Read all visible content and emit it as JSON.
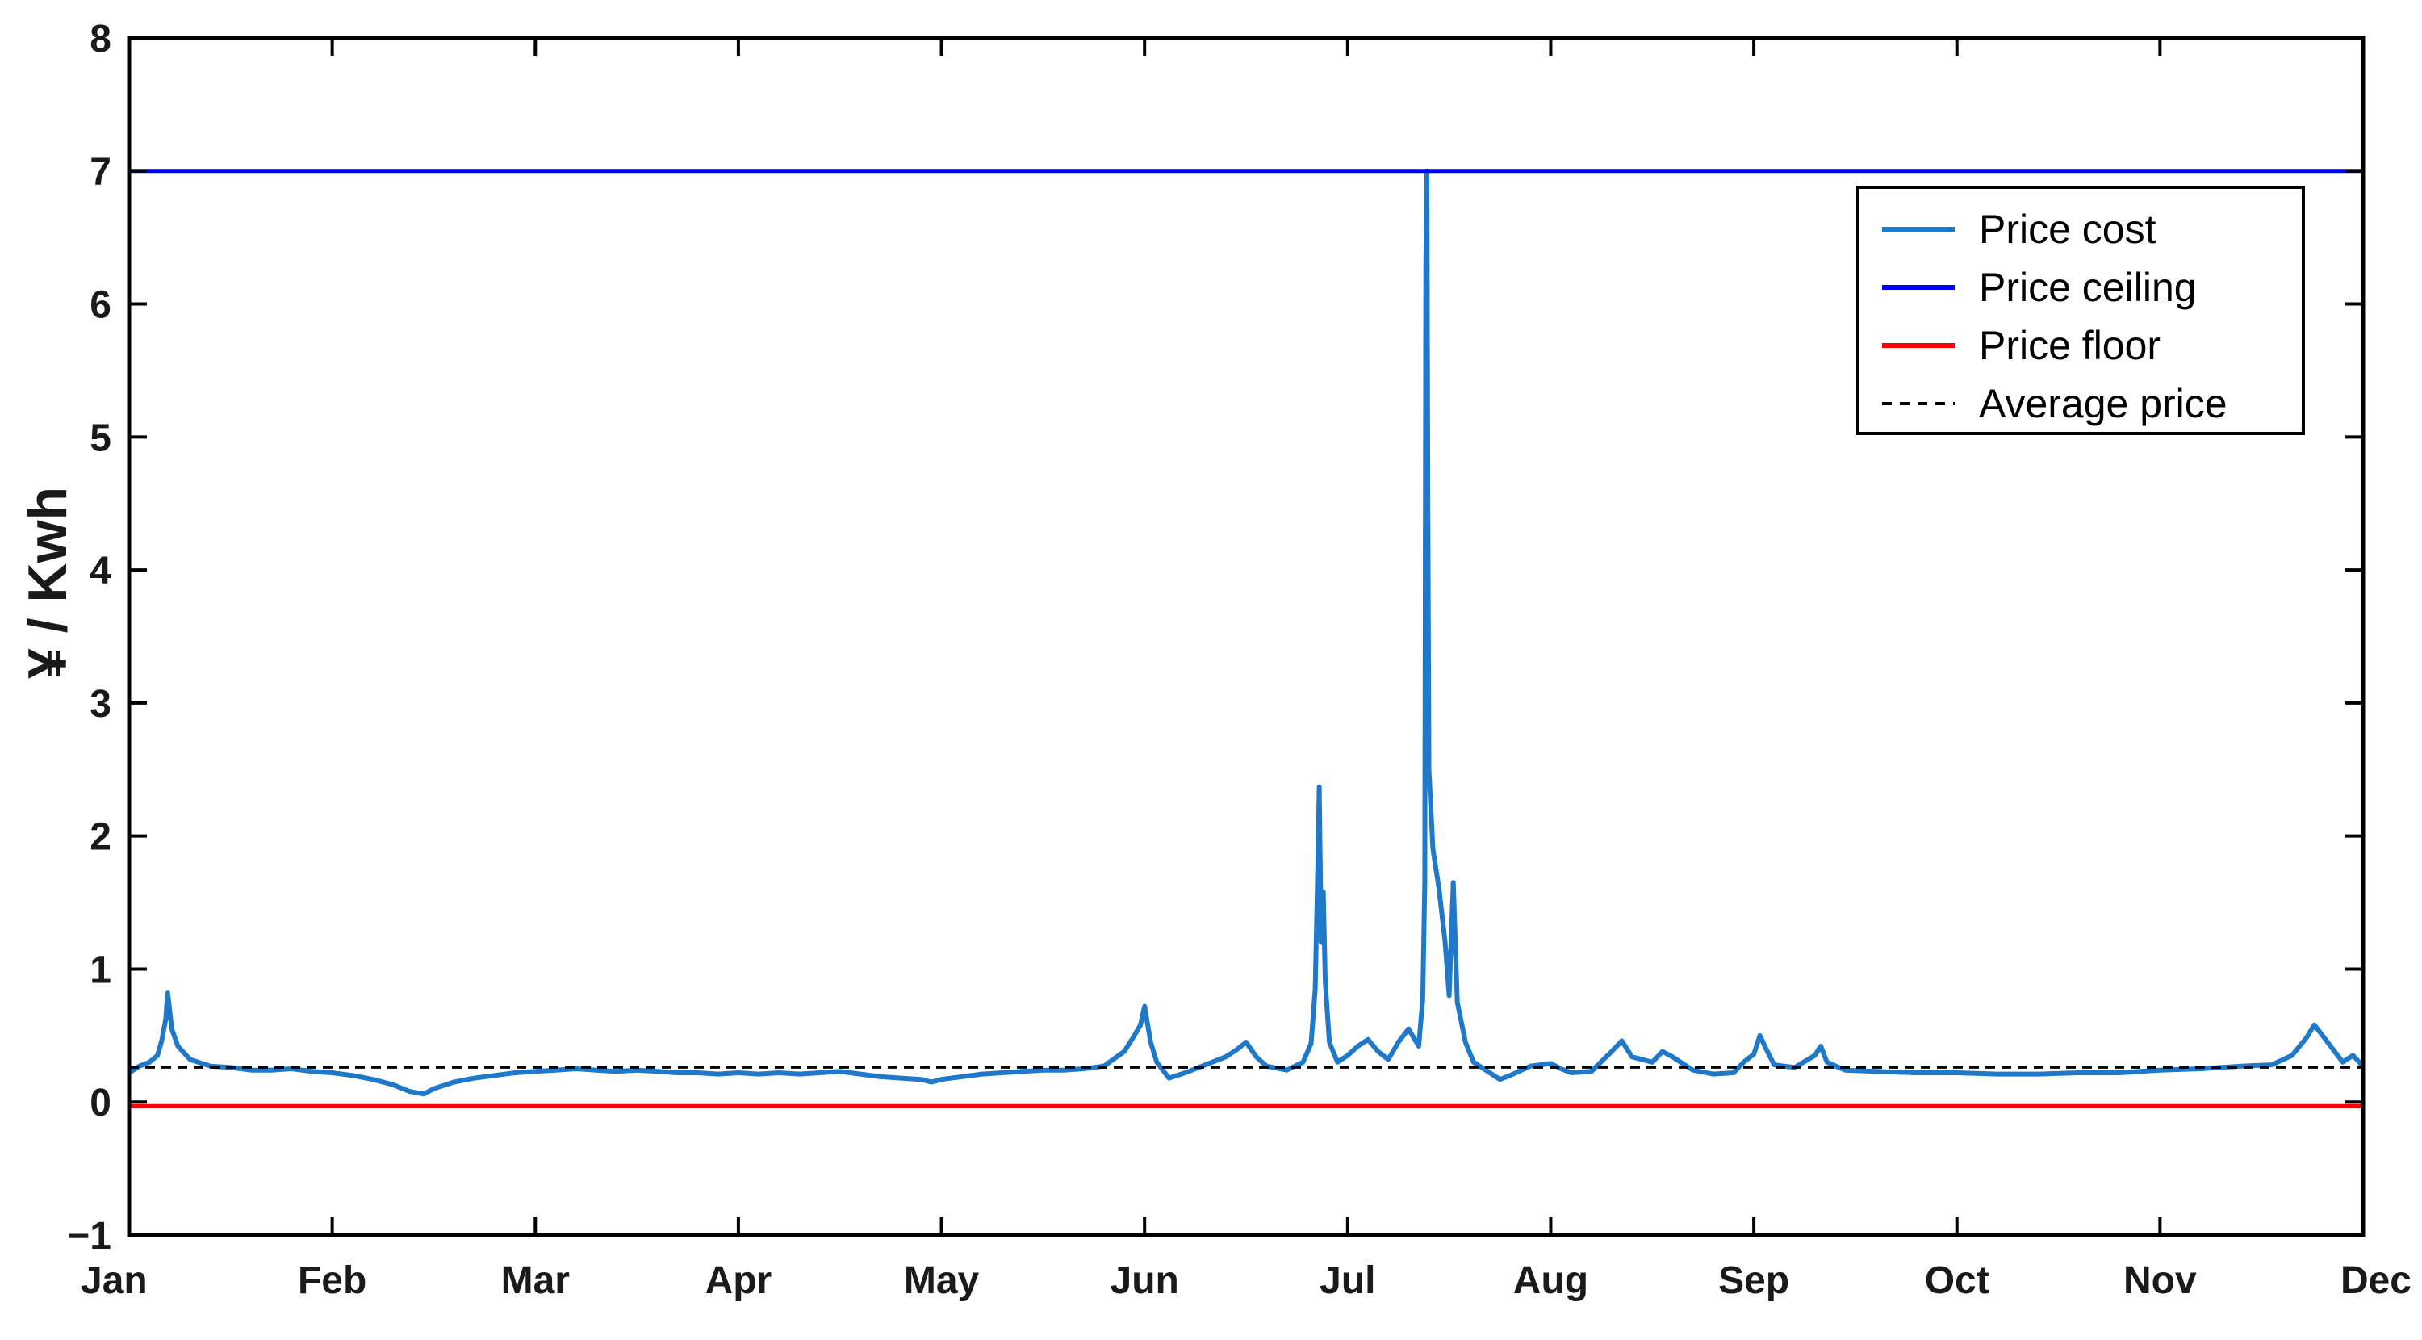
{
  "chart_data": {
    "type": "line",
    "title": "",
    "xlabel": "",
    "ylabel": "¥ / Kwh",
    "ylim": [
      -1,
      8
    ],
    "yticks": [
      -1,
      0,
      1,
      2,
      3,
      4,
      5,
      6,
      7,
      8
    ],
    "ytick_labels": [
      "−1",
      "0",
      "1",
      "2",
      "3",
      "4",
      "5",
      "6",
      "7",
      "8"
    ],
    "xlim": [
      0,
      11
    ],
    "xtick_labels": [
      "Jan",
      "Feb",
      "Mar",
      "Apr",
      "May",
      "Jun",
      "Jul",
      "Aug",
      "Sep",
      "Oct",
      "Nov",
      "Dec"
    ],
    "grid": false,
    "legend_position": "top-right",
    "series": [
      {
        "name": "Price cost",
        "color": "#1f78c8",
        "style": "solid",
        "points": [
          [
            0.0,
            0.22
          ],
          [
            0.05,
            0.27
          ],
          [
            0.1,
            0.3
          ],
          [
            0.14,
            0.35
          ],
          [
            0.16,
            0.46
          ],
          [
            0.18,
            0.62
          ],
          [
            0.19,
            0.82
          ],
          [
            0.21,
            0.55
          ],
          [
            0.24,
            0.42
          ],
          [
            0.3,
            0.32
          ],
          [
            0.4,
            0.27
          ],
          [
            0.5,
            0.26
          ],
          [
            0.6,
            0.24
          ],
          [
            0.7,
            0.24
          ],
          [
            0.8,
            0.25
          ],
          [
            0.9,
            0.23
          ],
          [
            1.0,
            0.22
          ],
          [
            1.1,
            0.2
          ],
          [
            1.2,
            0.17
          ],
          [
            1.3,
            0.13
          ],
          [
            1.38,
            0.08
          ],
          [
            1.45,
            0.06
          ],
          [
            1.5,
            0.1
          ],
          [
            1.6,
            0.15
          ],
          [
            1.7,
            0.18
          ],
          [
            1.8,
            0.2
          ],
          [
            1.9,
            0.22
          ],
          [
            2.0,
            0.23
          ],
          [
            2.1,
            0.24
          ],
          [
            2.2,
            0.25
          ],
          [
            2.3,
            0.24
          ],
          [
            2.4,
            0.23
          ],
          [
            2.5,
            0.24
          ],
          [
            2.6,
            0.23
          ],
          [
            2.7,
            0.22
          ],
          [
            2.8,
            0.22
          ],
          [
            2.9,
            0.21
          ],
          [
            3.0,
            0.22
          ],
          [
            3.1,
            0.21
          ],
          [
            3.2,
            0.22
          ],
          [
            3.3,
            0.21
          ],
          [
            3.4,
            0.22
          ],
          [
            3.5,
            0.23
          ],
          [
            3.6,
            0.21
          ],
          [
            3.7,
            0.19
          ],
          [
            3.8,
            0.18
          ],
          [
            3.9,
            0.17
          ],
          [
            3.95,
            0.15
          ],
          [
            4.0,
            0.17
          ],
          [
            4.1,
            0.19
          ],
          [
            4.2,
            0.21
          ],
          [
            4.3,
            0.22
          ],
          [
            4.4,
            0.23
          ],
          [
            4.5,
            0.24
          ],
          [
            4.6,
            0.24
          ],
          [
            4.7,
            0.25
          ],
          [
            4.8,
            0.27
          ],
          [
            4.9,
            0.38
          ],
          [
            4.95,
            0.5
          ],
          [
            4.98,
            0.58
          ],
          [
            5.0,
            0.72
          ],
          [
            5.03,
            0.45
          ],
          [
            5.06,
            0.3
          ],
          [
            5.12,
            0.18
          ],
          [
            5.2,
            0.22
          ],
          [
            5.3,
            0.28
          ],
          [
            5.4,
            0.34
          ],
          [
            5.45,
            0.39
          ],
          [
            5.5,
            0.45
          ],
          [
            5.55,
            0.34
          ],
          [
            5.6,
            0.27
          ],
          [
            5.7,
            0.24
          ],
          [
            5.78,
            0.3
          ],
          [
            5.82,
            0.44
          ],
          [
            5.84,
            0.85
          ],
          [
            5.85,
            1.55
          ],
          [
            5.86,
            2.37
          ],
          [
            5.87,
            1.2
          ],
          [
            5.88,
            1.58
          ],
          [
            5.89,
            0.9
          ],
          [
            5.91,
            0.45
          ],
          [
            5.95,
            0.3
          ],
          [
            6.0,
            0.35
          ],
          [
            6.05,
            0.42
          ],
          [
            6.1,
            0.47
          ],
          [
            6.15,
            0.38
          ],
          [
            6.2,
            0.32
          ],
          [
            6.25,
            0.45
          ],
          [
            6.3,
            0.55
          ],
          [
            6.35,
            0.42
          ],
          [
            6.37,
            0.78
          ],
          [
            6.38,
            1.65
          ],
          [
            6.385,
            6.3
          ],
          [
            6.39,
            7.0
          ],
          [
            6.395,
            4.5
          ],
          [
            6.4,
            2.5
          ],
          [
            6.42,
            1.9
          ],
          [
            6.45,
            1.6
          ],
          [
            6.48,
            1.2
          ],
          [
            6.5,
            0.8
          ],
          [
            6.52,
            1.65
          ],
          [
            6.54,
            0.75
          ],
          [
            6.58,
            0.45
          ],
          [
            6.62,
            0.3
          ],
          [
            6.7,
            0.22
          ],
          [
            6.75,
            0.17
          ],
          [
            6.8,
            0.2
          ],
          [
            6.9,
            0.27
          ],
          [
            7.0,
            0.29
          ],
          [
            7.05,
            0.25
          ],
          [
            7.1,
            0.22
          ],
          [
            7.2,
            0.23
          ],
          [
            7.3,
            0.38
          ],
          [
            7.35,
            0.46
          ],
          [
            7.4,
            0.34
          ],
          [
            7.5,
            0.3
          ],
          [
            7.55,
            0.38
          ],
          [
            7.6,
            0.34
          ],
          [
            7.7,
            0.24
          ],
          [
            7.8,
            0.21
          ],
          [
            7.9,
            0.22
          ],
          [
            7.95,
            0.3
          ],
          [
            8.0,
            0.36
          ],
          [
            8.03,
            0.5
          ],
          [
            8.06,
            0.4
          ],
          [
            8.1,
            0.28
          ],
          [
            8.2,
            0.26
          ],
          [
            8.3,
            0.35
          ],
          [
            8.33,
            0.42
          ],
          [
            8.36,
            0.3
          ],
          [
            8.45,
            0.24
          ],
          [
            8.6,
            0.23
          ],
          [
            8.8,
            0.22
          ],
          [
            9.0,
            0.22
          ],
          [
            9.2,
            0.21
          ],
          [
            9.4,
            0.21
          ],
          [
            9.6,
            0.22
          ],
          [
            9.8,
            0.22
          ],
          [
            10.0,
            0.24
          ],
          [
            10.2,
            0.25
          ],
          [
            10.4,
            0.27
          ],
          [
            10.55,
            0.28
          ],
          [
            10.65,
            0.35
          ],
          [
            10.72,
            0.48
          ],
          [
            10.76,
            0.58
          ],
          [
            10.8,
            0.5
          ],
          [
            10.85,
            0.4
          ],
          [
            10.9,
            0.3
          ],
          [
            10.95,
            0.35
          ],
          [
            11.0,
            0.27
          ]
        ]
      },
      {
        "name": "Price ceiling",
        "color": "#0000ff",
        "style": "solid",
        "x": [
          0,
          11
        ],
        "y": [
          7.0,
          7.0
        ]
      },
      {
        "name": "Price floor",
        "color": "#ff0000",
        "style": "solid",
        "x": [
          0,
          11
        ],
        "y": [
          -0.03,
          -0.03
        ]
      },
      {
        "name": "Average price",
        "color": "#000000",
        "style": "dashed",
        "x": [
          0,
          11
        ],
        "y": [
          0.26,
          0.26
        ]
      }
    ]
  }
}
